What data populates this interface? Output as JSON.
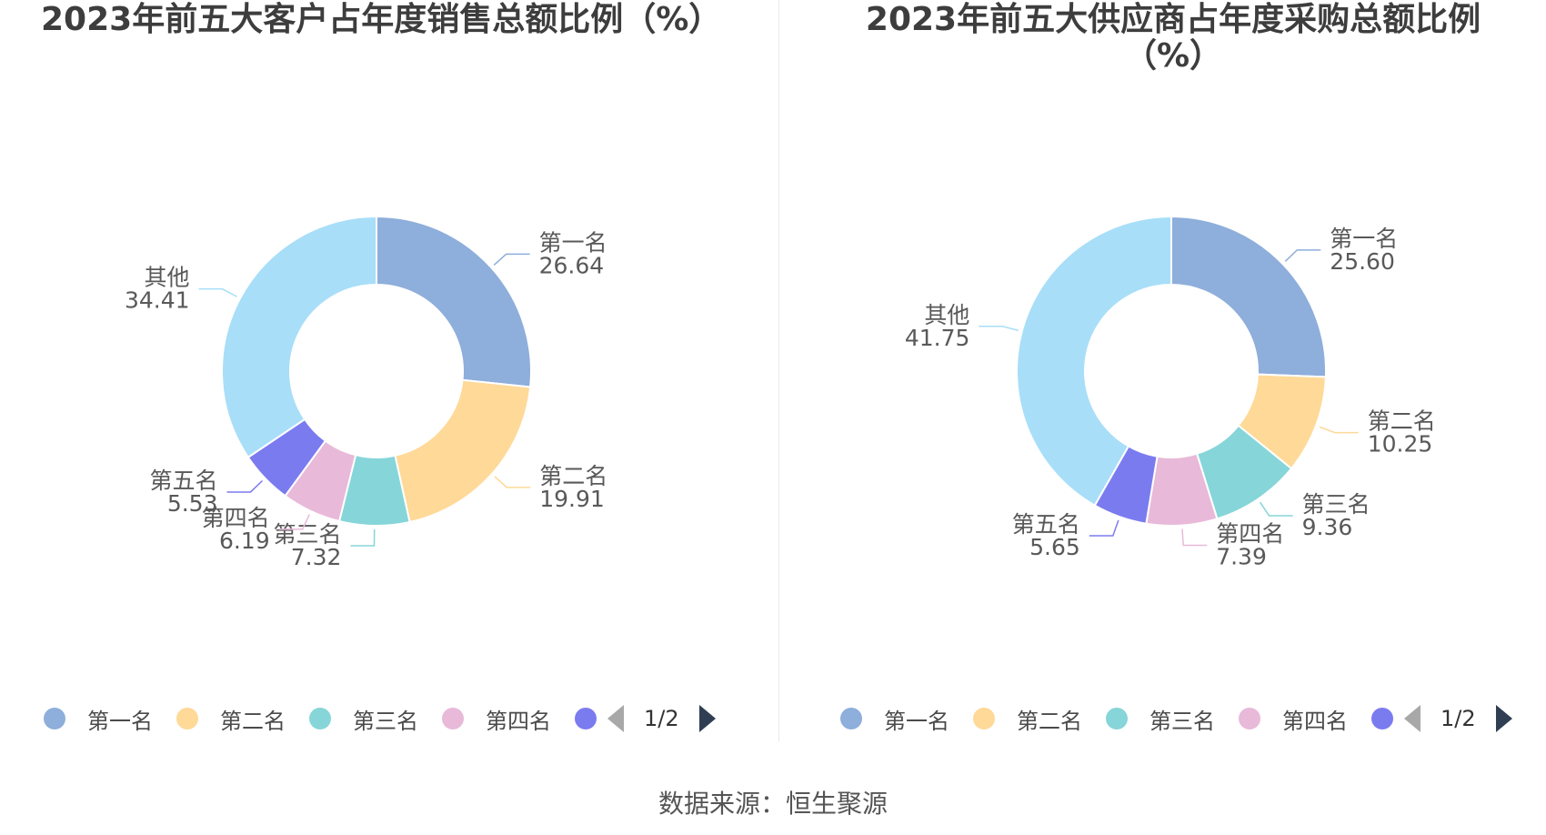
{
  "chart_data": [
    {
      "type": "pie",
      "title": "2023年前五大客户占年度销售总额比例（%）",
      "categories": [
        "第一名",
        "第二名",
        "第三名",
        "第四名",
        "第五名",
        "其他"
      ],
      "values": [
        26.64,
        19.91,
        7.32,
        6.19,
        5.53,
        34.41
      ],
      "value_labels": [
        "26.64",
        "19.91",
        "7.32",
        "6.19",
        "5.53",
        "34.41"
      ],
      "colors": [
        "#8eaedb",
        "#fed998",
        "#86d5d9",
        "#e8b9d9",
        "#7b7bf0",
        "#a8def8"
      ],
      "donut": true,
      "legend_position": "bottom"
    },
    {
      "type": "pie",
      "title": "2023年前五大供应商占年度采购总额比例（%）",
      "categories": [
        "第一名",
        "第二名",
        "第三名",
        "第四名",
        "第五名",
        "其他"
      ],
      "values": [
        25.6,
        10.25,
        9.36,
        7.39,
        5.65,
        41.75
      ],
      "value_labels": [
        "25.60",
        "10.25",
        "9.36",
        "7.39",
        "5.65",
        "41.75"
      ],
      "colors": [
        "#8eaedb",
        "#fed998",
        "#86d5d9",
        "#e8b9d9",
        "#7b7bf0",
        "#a8def8"
      ],
      "donut": true,
      "legend_position": "bottom"
    }
  ],
  "legend": {
    "items": [
      "第一名",
      "第二名",
      "第三名",
      "第四名"
    ],
    "page": "1/2"
  },
  "source": "数据来源：恒生聚源"
}
